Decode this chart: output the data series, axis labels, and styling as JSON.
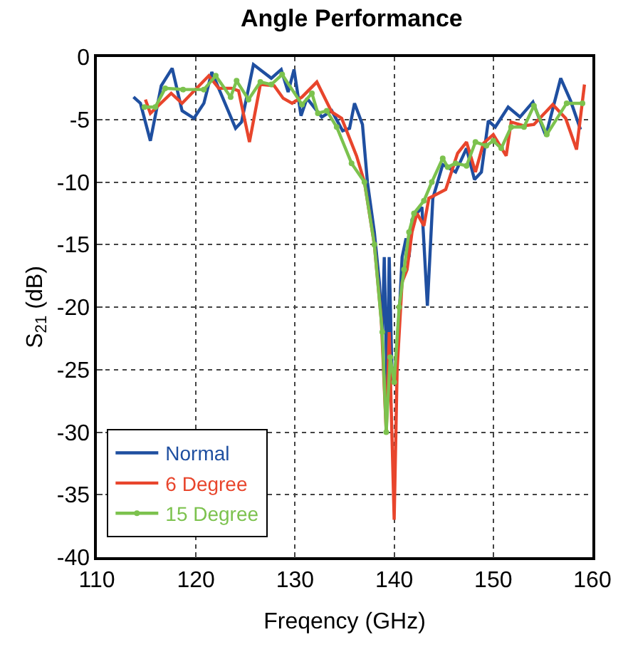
{
  "chart_data": {
    "type": "line",
    "title": "Angle Performance",
    "xlabel": "Freqency (GHz)",
    "ylabel": "S$_{21}$ (dB)",
    "xlim": [
      110,
      160
    ],
    "xticks": [
      110,
      120,
      130,
      140,
      150,
      160
    ],
    "ylim": [
      -40,
      0
    ],
    "yticks": [
      -40,
      -35,
      -30,
      -25,
      -20,
      -15,
      -10,
      -5,
      0
    ],
    "grid": true,
    "legend": "bottom left",
    "line_style": "solid",
    "series": [
      {
        "name": "Normal",
        "color": "#1f4fa0",
        "marker": "none",
        "x": [
          113.7,
          114.4,
          115.4,
          116.5,
          117.6,
          118.6,
          119.8,
          120.8,
          121.6,
          124.0,
          124.6,
          125.8,
          127.6,
          128.6,
          129.3,
          129.9,
          130.6,
          131.2,
          132.7,
          133.7,
          134.8,
          135.5,
          136.0,
          136.8,
          137.3,
          138.0,
          138.5,
          138.8,
          139.0,
          139.3,
          139.5,
          139.8,
          140.3,
          140.8,
          141.2,
          141.5,
          141.8,
          142.3,
          142.8,
          143.35,
          143.9,
          144.9,
          146.2,
          147.3,
          148.1,
          148.8,
          149.5,
          150.2,
          151.5,
          152.7,
          154.0,
          155.3,
          156.8,
          157.8,
          158.8
        ],
        "values": [
          -3.2,
          -3.7,
          -6.7,
          -2.3,
          -0.9,
          -4.3,
          -4.9,
          -3.7,
          -1.2,
          -5.7,
          -5.2,
          -0.6,
          -1.7,
          -1.0,
          -2.8,
          -1.0,
          -4.7,
          -3.3,
          -4.8,
          -4.3,
          -5.9,
          -5.7,
          -3.7,
          -5.4,
          -10,
          -14,
          -18,
          -22,
          -16,
          -27,
          -16,
          -26,
          -24,
          -16,
          -14.5,
          -16,
          -13,
          -12.5,
          -12,
          -19.9,
          -11.3,
          -8.6,
          -9.2,
          -7.3,
          -9.8,
          -9.2,
          -5.1,
          -5.6,
          -4.0,
          -4.8,
          -3.6,
          -6.3,
          -1.7,
          -3.5,
          -5.8
        ]
      },
      {
        "name": "6 Degree",
        "color": "#e8452c",
        "marker": "none",
        "x": [
          114.9,
          115.4,
          117.5,
          118.6,
          121.3,
          122.3,
          123.6,
          124.3,
          125.4,
          126.5,
          127.9,
          128.8,
          129.7,
          130.7,
          132.2,
          133.7,
          134.7,
          136.2,
          137.0,
          138.0,
          138.7,
          139.2,
          139.5,
          140.0,
          140.3,
          140.8,
          141.3,
          141.8,
          142.3,
          143.0,
          143.5,
          145.2,
          146.4,
          147.3,
          148.2,
          149.0,
          150.0,
          151.3,
          151.8,
          153.1,
          154.1,
          156.0,
          157.3,
          158.4,
          159.2
        ],
        "values": [
          -3.4,
          -4.5,
          -2.9,
          -3.7,
          -1.5,
          -2.5,
          -2.5,
          -2.7,
          -6.8,
          -2.2,
          -2.3,
          -3.3,
          -3.7,
          -3.2,
          -2.0,
          -4.4,
          -4.9,
          -7.9,
          -10,
          -15,
          -21,
          -30,
          -22,
          -37,
          -25,
          -18,
          -17,
          -14,
          -12.5,
          -13.5,
          -11.3,
          -10.6,
          -7.7,
          -6.8,
          -9.2,
          -6.9,
          -6.2,
          -7.9,
          -5.2,
          -5.5,
          -5.4,
          -3.8,
          -4.9,
          -7.4,
          -2.2
        ]
      },
      {
        "name": "15 Degree",
        "color": "#7cc24e",
        "marker": "circle",
        "x": [
          114.8,
          115.9,
          116.9,
          118.7,
          120.8,
          122.0,
          123.5,
          124.1,
          125.3,
          126.5,
          127.6,
          128.7,
          130.7,
          131.7,
          132.3,
          133.2,
          134.2,
          135.7,
          137.0,
          138.0,
          138.8,
          139.2,
          139.6,
          140.0,
          140.5,
          141.0,
          141.5,
          142.0,
          143.0,
          143.8,
          144.9,
          145.4,
          146.2,
          147.3,
          148.2,
          149.3,
          150.0,
          150.8,
          151.8,
          153.1,
          154.1,
          155.4,
          157.4,
          159.0
        ],
        "values": [
          -4.0,
          -4.0,
          -2.5,
          -2.6,
          -2.6,
          -1.5,
          -3.2,
          -1.9,
          -3.4,
          -2.0,
          -2.2,
          -1.4,
          -3.8,
          -2.9,
          -4.5,
          -4.3,
          -5.6,
          -8.5,
          -10,
          -15,
          -22,
          -30,
          -24,
          -26,
          -20,
          -17,
          -14,
          -12.5,
          -11.5,
          -10,
          -8.1,
          -8.8,
          -8.5,
          -8.7,
          -6.8,
          -7.1,
          -6.7,
          -7.3,
          -5.6,
          -5.6,
          -3.9,
          -6.2,
          -3.7,
          -3.7
        ]
      }
    ]
  }
}
